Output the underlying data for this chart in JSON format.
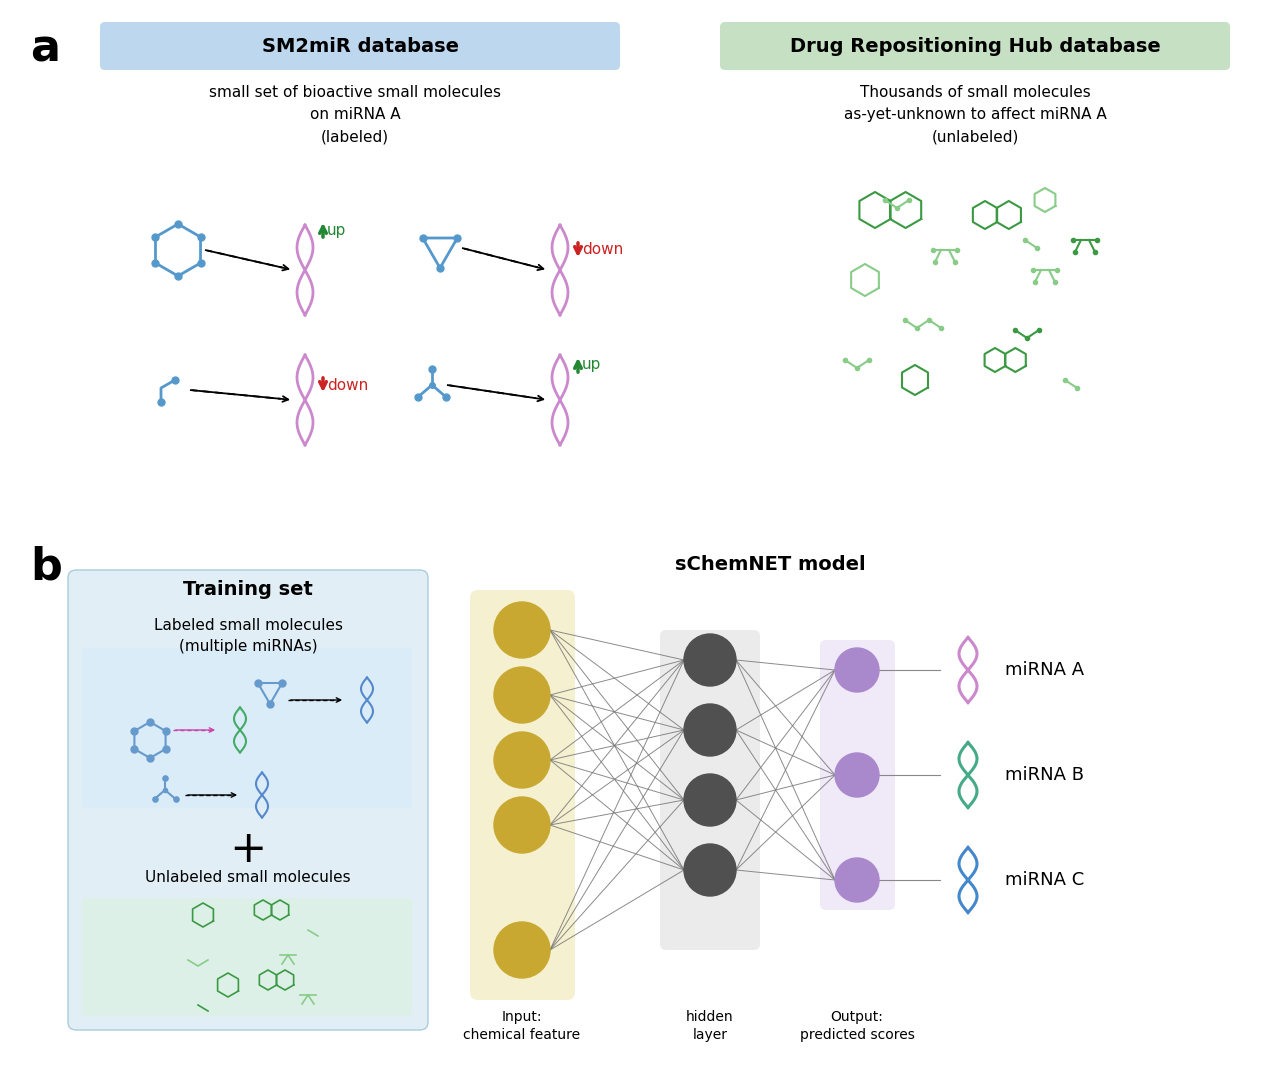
{
  "panel_a_label": "a",
  "panel_b_label": "b",
  "sm2mir_title": "SM2miR database",
  "drug_repo_title": "Drug Repositioning Hub database",
  "sm2mir_subtitle": "small set of bioactive small molecules\non miRNA A\n(labeled)",
  "drug_repo_subtitle": "Thousands of small molecules\nas-yet-unknown to affect miRNA A\n(unlabeled)",
  "training_set_title": "Training set",
  "labeled_title": "Labeled small molecules\n(multiple miRNAs)",
  "unlabeled_title": "Unlabeled small molecules",
  "schemnest_title": "sChemNET model",
  "input_label": "Input:\nchemical feature",
  "output_label": "Output:\npredicted scores",
  "hidden_label": "hidden\nlayer",
  "mirna_labels": [
    "miRNA A",
    "miRNA B",
    "miRNA C"
  ],
  "sm2mir_box_color": "#bdd7ee",
  "drug_repo_box_color": "#c6e0c4",
  "training_box_color": "#e2eef6",
  "labeled_box_color": "#d9ecf7",
  "unlabeled_box_color": "#e2f2eb",
  "input_box_color": "#f5f0d0",
  "hidden_box_color": "#c8c8c8",
  "output_box_color": "#e8e0f0",
  "dna_color": "#cc88cc",
  "molecule_color": "#5599cc",
  "up_arrow_color": "#228833",
  "down_arrow_color": "#cc2222",
  "neural_input_color": "#c8a830",
  "neural_hidden_color": "#505050",
  "neural_output_color": "#aa88cc",
  "mirna_a_color": "#cc88cc",
  "mirna_b_color": "#44aa88",
  "mirna_c_color": "#4488cc",
  "green_mol_color": "#3a9942",
  "green_mol_light_color": "#88cc88"
}
